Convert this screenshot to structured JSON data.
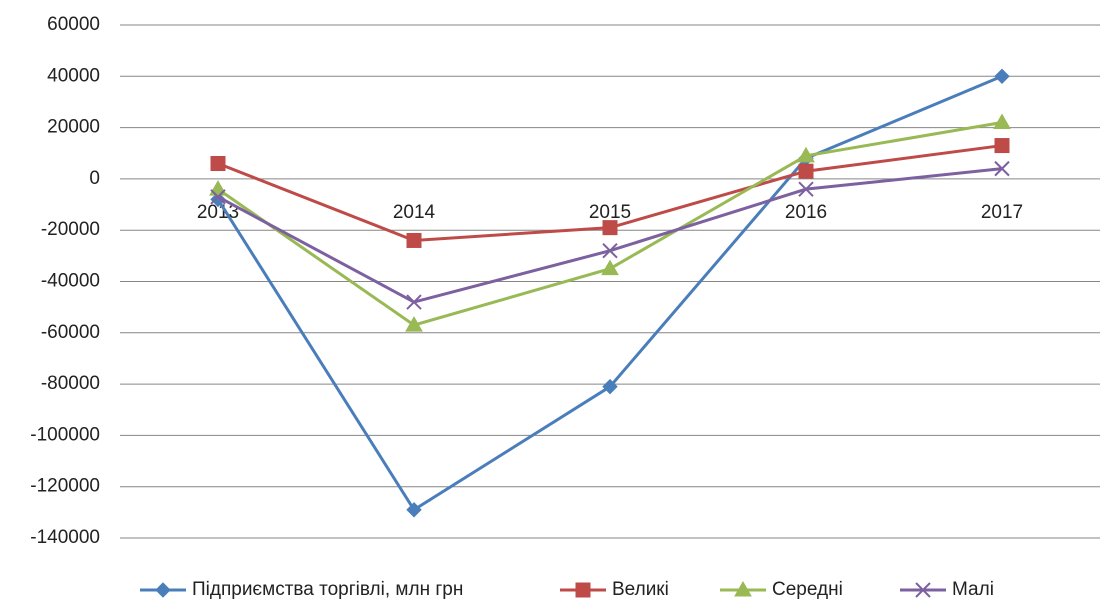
{
  "chart_data": {
    "type": "line",
    "categories": [
      "2013",
      "2014",
      "2015",
      "2016",
      "2017"
    ],
    "series": [
      {
        "name": "Підприємства торгівлі, млн грн",
        "color": "#4a7ebb",
        "marker": "diamond",
        "values": [
          -8000,
          -129000,
          -81000,
          8000,
          40000
        ]
      },
      {
        "name": "Великі",
        "color": "#be4b48",
        "marker": "square",
        "values": [
          6000,
          -24000,
          -19000,
          3000,
          13000
        ]
      },
      {
        "name": "Середні",
        "color": "#98b954",
        "marker": "triangle",
        "values": [
          -4000,
          -57000,
          -35000,
          9000,
          22000
        ]
      },
      {
        "name": "Малі",
        "color": "#7d60a0",
        "marker": "x",
        "values": [
          -7000,
          -48000,
          -28000,
          -4000,
          4000
        ]
      }
    ],
    "ylim": [
      -140000,
      60000
    ],
    "yticks": [
      -140000,
      -120000,
      -100000,
      -80000,
      -60000,
      -40000,
      -20000,
      0,
      20000,
      40000,
      60000
    ],
    "grid": true,
    "legend": "bottom"
  }
}
